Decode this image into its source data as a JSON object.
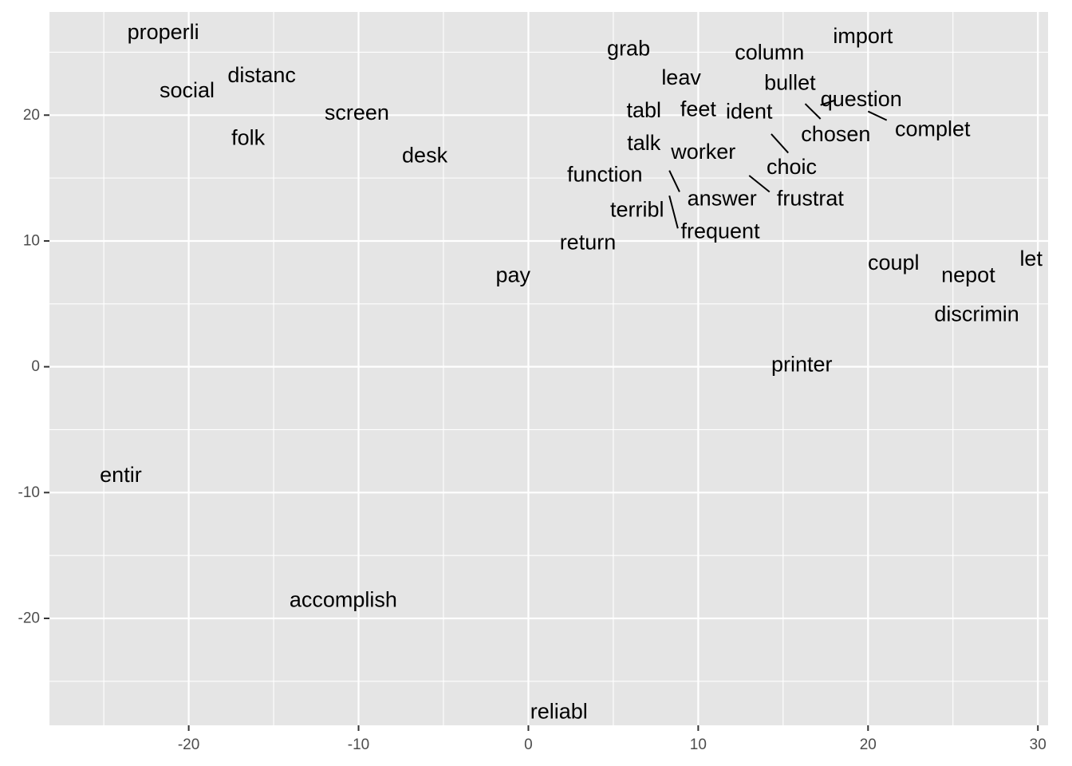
{
  "chart_data": {
    "type": "scatter",
    "title": "",
    "xlabel": "",
    "ylabel": "",
    "xlim": [
      -28.2,
      30.6
    ],
    "ylim": [
      -28.5,
      28.2
    ],
    "x_ticks": [
      -20,
      -10,
      0,
      10,
      20,
      30
    ],
    "y_ticks": [
      -20,
      -10,
      0,
      10,
      20
    ],
    "x_tick_labels": [
      "-20",
      "-10",
      "0",
      "10",
      "20",
      "30"
    ],
    "y_tick_labels": [
      "-20",
      "-10",
      "0",
      "10",
      "20"
    ],
    "grid": true,
    "legend": "none",
    "points": [
      {
        "label": "properli",
        "x": -21.5,
        "y": 26.6
      },
      {
        "label": "distanc",
        "x": -15.7,
        "y": 23.2
      },
      {
        "label": "social",
        "x": -20.1,
        "y": 22.0
      },
      {
        "label": "screen",
        "x": -10.1,
        "y": 20.2
      },
      {
        "label": "folk",
        "x": -16.5,
        "y": 18.2
      },
      {
        "label": "desk",
        "x": -6.1,
        "y": 16.8
      },
      {
        "label": "grab",
        "x": 5.9,
        "y": 25.3
      },
      {
        "label": "leav",
        "x": 9.0,
        "y": 23.0
      },
      {
        "label": "column",
        "x": 14.2,
        "y": 25.0
      },
      {
        "label": "import",
        "x": 19.7,
        "y": 26.3
      },
      {
        "label": "bullet",
        "x": 15.4,
        "y": 22.6
      },
      {
        "label": "question",
        "x": 19.6,
        "y": 21.3
      },
      {
        "label": "tabl",
        "x": 6.8,
        "y": 20.4
      },
      {
        "label": "feet",
        "x": 10.0,
        "y": 20.5
      },
      {
        "label": "ident",
        "x": 13.0,
        "y": 20.3
      },
      {
        "label": "chosen",
        "x": 18.1,
        "y": 18.5
      },
      {
        "label": "complet",
        "x": 23.8,
        "y": 18.9
      },
      {
        "label": "talk",
        "x": 6.8,
        "y": 17.8
      },
      {
        "label": "worker",
        "x": 10.3,
        "y": 17.1
      },
      {
        "label": "choic",
        "x": 15.5,
        "y": 15.9
      },
      {
        "label": "function",
        "x": 4.5,
        "y": 15.3
      },
      {
        "label": "answer",
        "x": 11.4,
        "y": 13.4
      },
      {
        "label": "frustrat",
        "x": 16.6,
        "y": 13.4
      },
      {
        "label": "terribl",
        "x": 6.4,
        "y": 12.5
      },
      {
        "label": "frequent",
        "x": 11.3,
        "y": 10.8
      },
      {
        "label": "return",
        "x": 3.5,
        "y": 9.9
      },
      {
        "label": "pay",
        "x": -0.9,
        "y": 7.3
      },
      {
        "label": "coupl",
        "x": 21.5,
        "y": 8.3
      },
      {
        "label": "let",
        "x": 29.6,
        "y": 8.6
      },
      {
        "label": "nepot",
        "x": 25.9,
        "y": 7.3
      },
      {
        "label": "discrimin",
        "x": 26.4,
        "y": 4.2
      },
      {
        "label": "printer",
        "x": 16.1,
        "y": 0.2
      },
      {
        "label": "entir",
        "x": -24.0,
        "y": -8.6
      },
      {
        "label": "accomplish",
        "x": -10.9,
        "y": -18.5
      },
      {
        "label": "reliabl",
        "x": 1.8,
        "y": -27.4
      }
    ],
    "segments": [
      {
        "x1": 18.1,
        "y1": 21.2,
        "x2": 17.2,
        "y2": 20.8
      },
      {
        "x1": 20.0,
        "y1": 20.3,
        "x2": 21.1,
        "y2": 19.6
      },
      {
        "x1": 16.3,
        "y1": 20.9,
        "x2": 17.2,
        "y2": 19.7
      },
      {
        "x1": 14.3,
        "y1": 18.5,
        "x2": 15.3,
        "y2": 17.0
      },
      {
        "x1": 8.3,
        "y1": 15.6,
        "x2": 8.9,
        "y2": 13.9
      },
      {
        "x1": 13.0,
        "y1": 15.2,
        "x2": 14.2,
        "y2": 13.9
      },
      {
        "x1": 8.3,
        "y1": 13.6,
        "x2": 8.8,
        "y2": 11.0
      }
    ]
  },
  "colors": {
    "panel_background": "#e5e5e5",
    "grid_line": "#ffffff",
    "tick_text": "#4d4d4d",
    "label_text": "#000000"
  }
}
